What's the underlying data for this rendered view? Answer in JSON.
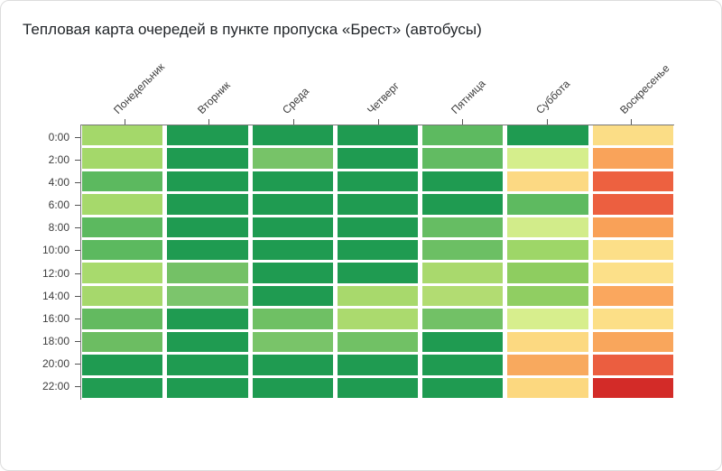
{
  "card": {
    "title": "Тепловая карта очередей в пункте пропуска «Брест» (автобусы)"
  },
  "chart_data": {
    "type": "heatmap",
    "title": "Тепловая карта очередей в пункте пропуска «Брест» (автобусы)",
    "x_labels": [
      "Понедельник",
      "Вторник",
      "Среда",
      "Четверг",
      "Пятница",
      "Суббота",
      "Воскресенье"
    ],
    "y_labels": [
      "0:00",
      "2:00",
      "4:00",
      "6:00",
      "8:00",
      "10:00",
      "12:00",
      "14:00",
      "16:00",
      "18:00",
      "20:00",
      "22:00"
    ],
    "x_axis_position": "top",
    "x_label_rotation_deg": -45,
    "colorscale": {
      "name": "RdYlGn reversed",
      "low_color": "#1f9b51",
      "mid_color": "#fee08b",
      "high_color": "#d32b28",
      "meaning": "зелёный = малая очередь, красный = большая очередь"
    },
    "cell_colors": [
      [
        "#a4d86a",
        "#1f9b51",
        "#1f9b51",
        "#1f9b51",
        "#5dba60",
        "#1f9b51",
        "#fbdd86"
      ],
      [
        "#a4d86a",
        "#1f9b51",
        "#77c368",
        "#1f9b51",
        "#62bb62",
        "#d5ee8c",
        "#f9a35a"
      ],
      [
        "#5cb95f",
        "#1f9b51",
        "#1f9b51",
        "#1f9b51",
        "#1f9b51",
        "#fcd983",
        "#ed6140"
      ],
      [
        "#a6d96b",
        "#1f9b51",
        "#1f9b51",
        "#1f9b51",
        "#1f9b51",
        "#5eba60",
        "#ec5f40"
      ],
      [
        "#5cb95f",
        "#1f9b51",
        "#1f9b51",
        "#1f9b51",
        "#66bd63",
        "#d2ec8a",
        "#f9a158"
      ],
      [
        "#5cb95f",
        "#1f9b51",
        "#1f9b51",
        "#1f9b51",
        "#6cbf64",
        "#9ed668",
        "#fcdf88"
      ],
      [
        "#a8da6d",
        "#74c166",
        "#1f9b51",
        "#1f9b51",
        "#a9d96d",
        "#8ecd60",
        "#fce089"
      ],
      [
        "#a6d86c",
        "#7cc56c",
        "#1f9b51",
        "#a8d96c",
        "#b2dc72",
        "#90ce62",
        "#faa75e"
      ],
      [
        "#63ba60",
        "#1f9b51",
        "#6fc064",
        "#abda6e",
        "#72c166",
        "#d7ee8d",
        "#fcdf87"
      ],
      [
        "#6cbd62",
        "#1f9b51",
        "#79c469",
        "#71c165",
        "#1f9b51",
        "#fcd981",
        "#f9a65c"
      ],
      [
        "#1f9b51",
        "#1f9b51",
        "#1f9b51",
        "#1f9b51",
        "#1f9b51",
        "#f8a95e",
        "#eb5e40"
      ],
      [
        "#219c52",
        "#1f9b51",
        "#1f9b51",
        "#1f9b51",
        "#1f9b51",
        "#fcd87f",
        "#d32b28"
      ]
    ],
    "values_estimated_0_low_to_10_high": [
      [
        4,
        1,
        1,
        1,
        3,
        1,
        6
      ],
      [
        4,
        1,
        3.5,
        1,
        3,
        5,
        8
      ],
      [
        3,
        1,
        1,
        1,
        1,
        6.5,
        9
      ],
      [
        4,
        1,
        1,
        1,
        1,
        3,
        9
      ],
      [
        3,
        1,
        1,
        1,
        3,
        5,
        8
      ],
      [
        3,
        1,
        1,
        1,
        3,
        4,
        6
      ],
      [
        4,
        3.5,
        1,
        1,
        4,
        3.5,
        6
      ],
      [
        4,
        3.5,
        1,
        4,
        4,
        3.5,
        8
      ],
      [
        3,
        1,
        3.5,
        4,
        3,
        5,
        6
      ],
      [
        3,
        1,
        3.5,
        3,
        1,
        6.5,
        8
      ],
      [
        1,
        1,
        1,
        1,
        1,
        8,
        9
      ],
      [
        1,
        1,
        1,
        1,
        1,
        6.5,
        10
      ]
    ],
    "legend": "none",
    "grid": "white gaps between cells"
  }
}
